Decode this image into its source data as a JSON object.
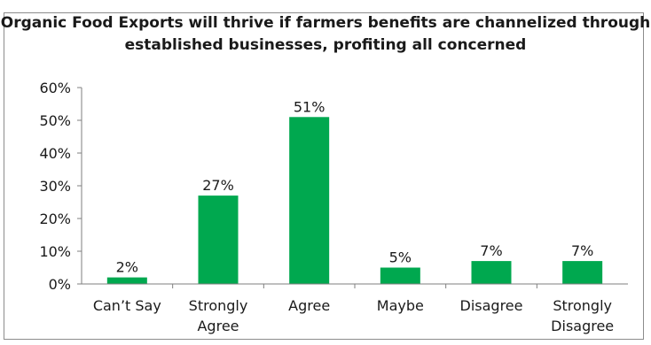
{
  "chart_data": {
    "type": "bar",
    "title_lines": [
      "Organic Food Exports will thrive if farmers benefits  are channelized through",
      "established businesses, profiting all concerned"
    ],
    "categories": [
      [
        "Can’t Say"
      ],
      [
        "Strongly",
        "Agree"
      ],
      [
        "Agree"
      ],
      [
        "Maybe"
      ],
      [
        "Disagree"
      ],
      [
        "Strongly",
        "Disagree"
      ]
    ],
    "values": [
      2,
      27,
      51,
      5,
      7,
      7
    ],
    "value_labels": [
      "2%",
      "27%",
      "51%",
      "5%",
      "7%",
      "7%"
    ],
    "ylim": [
      0,
      60
    ],
    "yticks": [
      0,
      10,
      20,
      30,
      40,
      50,
      60
    ],
    "ytick_labels": [
      "0%",
      "10%",
      "20%",
      "30%",
      "40%",
      "50%",
      "60%"
    ],
    "grid": false,
    "legend": "none",
    "bar_color": "#00a84f"
  }
}
